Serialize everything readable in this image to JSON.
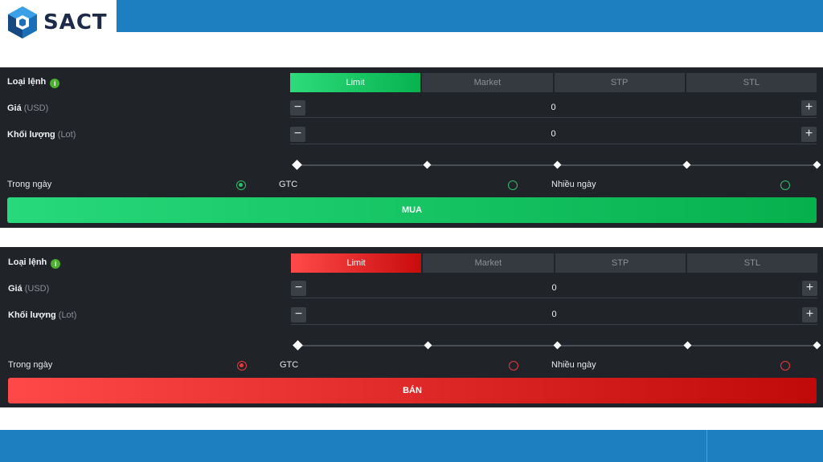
{
  "brand": {
    "name": "SACT",
    "logo_icon": "hexagon-logo-icon"
  },
  "colors": {
    "topbar": "#1e7fc0",
    "buy_accent": "#1ec86a",
    "sell_accent": "#e02a2a",
    "panel_bg": "#202327"
  },
  "buy_panel": {
    "order_type_label": "Loại lệnh",
    "info_icon": "i",
    "tabs": [
      "Limit",
      "Market",
      "STP",
      "STL"
    ],
    "active_tab": "Limit",
    "price_label": "Giá",
    "price_unit": "(USD)",
    "price_value": "0",
    "volume_label": "Khối lượng",
    "volume_unit": "(Lot)",
    "volume_value": "0",
    "minus_symbol": "−",
    "plus_symbol": "+",
    "slider_percent": 0,
    "tif_options": [
      "Trong ngày",
      "GTC",
      "Nhiều ngày"
    ],
    "tif_selected": "Trong ngày",
    "action_label": "MUA"
  },
  "sell_panel": {
    "order_type_label": "Loại lệnh",
    "info_icon": "i",
    "tabs": [
      "Limit",
      "Market",
      "STP",
      "STL"
    ],
    "active_tab": "Limit",
    "price_label": "Giá",
    "price_unit": "(USD)",
    "price_value": "0",
    "volume_label": "Khối lượng",
    "volume_unit": "(Lot)",
    "volume_value": "0",
    "minus_symbol": "−",
    "plus_symbol": "+",
    "slider_percent": 0,
    "tif_options": [
      "Trong ngày",
      "GTC",
      "Nhiều ngày"
    ],
    "tif_selected": "Trong ngày",
    "action_label": "BÁN"
  }
}
